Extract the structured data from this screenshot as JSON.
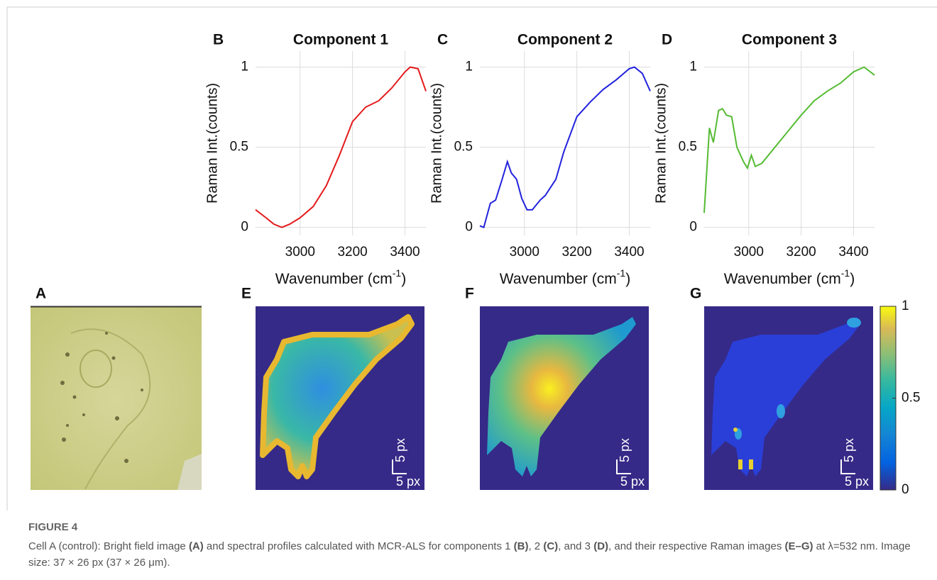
{
  "chart_data": [
    {
      "type": "line",
      "panel": "B",
      "title": "Component 1",
      "ylabel": "Raman Int.(counts)",
      "xlabel": "Wavenumber (cm",
      "xlabel_sup": "-1",
      "xlabel_end": ")",
      "x": [
        2830,
        2870,
        2900,
        2930,
        2960,
        3000,
        3050,
        3100,
        3150,
        3200,
        3250,
        3300,
        3350,
        3400,
        3420,
        3450,
        3480
      ],
      "values": [
        0.11,
        0.06,
        0.02,
        0.0,
        0.02,
        0.06,
        0.13,
        0.26,
        0.45,
        0.66,
        0.75,
        0.79,
        0.87,
        0.97,
        1.0,
        0.99,
        0.85
      ],
      "color": "#e41a1c",
      "xlim": [
        2830,
        3480
      ],
      "ylim": [
        -0.05,
        1.1
      ],
      "xticks": [
        3000,
        3200,
        3400
      ],
      "yticks": [
        0,
        0.5,
        1
      ],
      "grid": true
    },
    {
      "type": "line",
      "panel": "C",
      "title": "Component 2",
      "ylabel": "Raman Int.(counts)",
      "xlabel": "Wavenumber (cm",
      "xlabel_sup": "-1",
      "xlabel_end": ")",
      "x": [
        2830,
        2845,
        2870,
        2890,
        2915,
        2935,
        2950,
        2970,
        2990,
        3010,
        3030,
        3060,
        3080,
        3120,
        3150,
        3200,
        3250,
        3300,
        3350,
        3400,
        3420,
        3450,
        3480
      ],
      "values": [
        0.01,
        0.0,
        0.15,
        0.17,
        0.3,
        0.41,
        0.34,
        0.3,
        0.18,
        0.11,
        0.11,
        0.17,
        0.2,
        0.3,
        0.47,
        0.69,
        0.78,
        0.86,
        0.92,
        0.99,
        1.0,
        0.96,
        0.85
      ],
      "color": "#2222dd",
      "xlim": [
        2830,
        3480
      ],
      "ylim": [
        -0.05,
        1.1
      ],
      "xticks": [
        3000,
        3200,
        3400
      ],
      "yticks": [
        0,
        0.5,
        1
      ],
      "grid": true
    },
    {
      "type": "line",
      "panel": "D",
      "title": "Component 3",
      "ylabel": "Raman Int.(counts)",
      "xlabel": "Wavenumber (cm",
      "xlabel_sup": "-1",
      "xlabel_end": ")",
      "x": [
        2830,
        2850,
        2865,
        2885,
        2900,
        2915,
        2935,
        2955,
        2980,
        2995,
        3010,
        3025,
        3050,
        3100,
        3150,
        3200,
        3250,
        3300,
        3350,
        3400,
        3440,
        3480
      ],
      "values": [
        0.09,
        0.62,
        0.53,
        0.73,
        0.74,
        0.7,
        0.69,
        0.5,
        0.41,
        0.37,
        0.45,
        0.38,
        0.4,
        0.5,
        0.6,
        0.7,
        0.79,
        0.85,
        0.9,
        0.97,
        1.0,
        0.95
      ],
      "color": "#55bb33",
      "xlim": [
        2830,
        3480
      ],
      "ylim": [
        -0.05,
        1.1
      ],
      "xticks": [
        3000,
        3200,
        3400
      ],
      "yticks": [
        0,
        0.5,
        1
      ],
      "grid": true
    }
  ],
  "figure": {
    "panel_labels": [
      "A",
      "E",
      "F",
      "G"
    ],
    "scale_label": "5 px",
    "colorbar": {
      "lim": [
        0,
        1
      ],
      "ticks": [
        0,
        0.5,
        1
      ]
    },
    "caption_title": "FIGURE 4",
    "caption": [
      "Cell A (control): Bright field image ",
      "(A)",
      " and spectral profiles calculated with MCR-ALS for components 1 ",
      "(B)",
      ", 2 ",
      "(C)",
      ", and 3 ",
      "(D)",
      ", and their respective Raman images ",
      "(E–G)",
      " at λ=532 nm. Image size: 37 × 26 px (37 × 26 μm)."
    ]
  }
}
